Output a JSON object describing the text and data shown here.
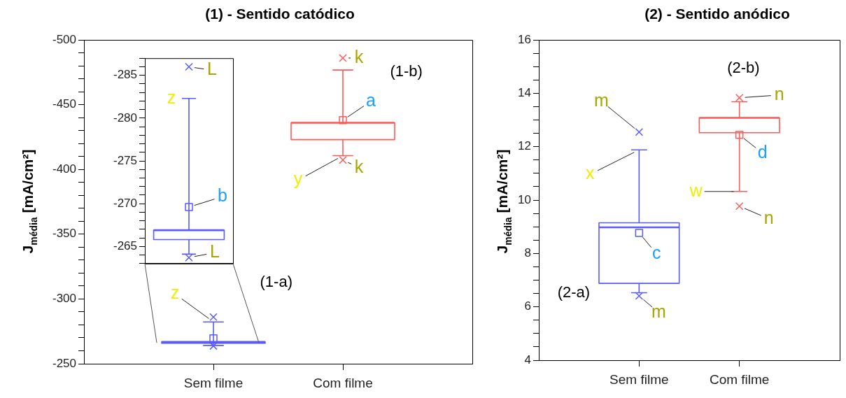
{
  "chart_data": [
    {
      "type": "box",
      "title": "(1) - Sentido catódico",
      "ylabel": "J$_{média}$ [mA/cm²]",
      "categories": [
        "Sem filme",
        "Com filme"
      ],
      "colors": [
        "#5a5aff",
        "#ff5a5a"
      ],
      "boxes": [
        {
          "low": -282.3,
          "q1": -266.9,
          "median": -266.9,
          "q3": -265.8,
          "high": -264.1,
          "mean": -269.6,
          "outliers": [
            -286,
            -263.7
          ]
        },
        {
          "low": -476.7,
          "q1": -436,
          "median": -436,
          "q3": -423,
          "high": -410.6,
          "mean": -438,
          "outliers": [
            -486,
            -407.3
          ]
        }
      ],
      "ylim": [
        -250,
        -500
      ],
      "yticks": [
        -500,
        {
          "value": -490,
          "label": null
        },
        {
          "value": -480,
          "label": null
        },
        {
          "value": -470,
          "label": null
        },
        {
          "value": -460,
          "label": null
        },
        -450,
        {
          "value": -440,
          "label": null
        },
        {
          "value": -430,
          "label": null
        },
        {
          "value": -420,
          "label": null
        },
        {
          "value": -410,
          "label": null
        },
        -400,
        {
          "value": -390,
          "label": null
        },
        {
          "value": -380,
          "label": null
        },
        {
          "value": -370,
          "label": null
        },
        {
          "value": -360,
          "label": null
        },
        -350,
        {
          "value": -340,
          "label": null
        },
        {
          "value": -330,
          "label": null
        },
        {
          "value": -320,
          "label": null
        },
        {
          "value": -310,
          "label": null
        },
        -300,
        {
          "value": -290,
          "label": null
        },
        {
          "value": -280,
          "label": null
        },
        {
          "value": -270,
          "label": null
        },
        {
          "value": -260,
          "label": null
        },
        -250
      ],
      "annotations": [
        "z",
        "k",
        "a",
        {
          "text": "y",
          "x": "Com filme",
          "y": -410.6
        },
        "k",
        "(1-b)",
        "(1-a)"
      ]
    },
    {
      "type": "box",
      "categories": [
        null
      ],
      "colors": [
        "#5a5aff"
      ],
      "boxes": [
        {
          "low": -282.3,
          "q1": -266.9,
          "median": -266.9,
          "q3": -265.8,
          "high": -264.1,
          "mean": -269.6,
          "outliers": [
            -286,
            -263.7
          ]
        }
      ],
      "ylim": [
        -263,
        -287
      ],
      "tick_labels": "y",
      "yticks": [
        {
          "value": -287,
          "label": null
        },
        {
          "value": -286,
          "label": null
        },
        -285,
        {
          "value": -284,
          "label": null
        },
        {
          "value": -283,
          "label": null
        },
        {
          "value": -282,
          "label": null
        },
        {
          "value": -281,
          "label": null
        },
        -280,
        {
          "value": -279,
          "label": null
        },
        {
          "value": -278,
          "label": null
        },
        {
          "value": -277,
          "label": null
        },
        {
          "value": -276,
          "label": null
        },
        -275,
        {
          "value": -274,
          "label": null
        },
        {
          "value": -273,
          "label": null
        },
        {
          "value": -272,
          "label": null
        },
        {
          "value": -271,
          "label": null
        },
        -270,
        {
          "value": -269,
          "label": null
        },
        {
          "value": -268,
          "label": null
        },
        {
          "value": -267,
          "label": null
        },
        {
          "value": -266,
          "label": null
        },
        -265,
        {
          "value": -264,
          "label": null
        },
        {
          "value": -263,
          "label": null
        }
      ],
      "annotations": [
        "L",
        "z",
        "b",
        "L"
      ]
    },
    {
      "type": "box",
      "title": "(2) - Sentido anódico",
      "ylabel": "J$_{média}$ [mA/cm²]",
      "categories": [
        "Sem filme",
        "Com filme"
      ],
      "colors": [
        "#5a5aff",
        "#ff5a5a"
      ],
      "boxes": [
        {
          "low": 6.53,
          "q1": 6.88,
          "median": 8.98,
          "q3": 9.15,
          "high": 11.88,
          "mean": 8.77,
          "outliers": [
            6.41,
            12.55
          ]
        },
        {
          "low": 10.32,
          "q1": 12.52,
          "median": 13.08,
          "q3": 13.08,
          "high": 13.68,
          "mean": 12.44,
          "outliers": [
            9.77,
            13.83
          ]
        }
      ],
      "ylim": [
        4,
        16
      ],
      "yticks": [
        4,
        {
          "value": 4.5,
          "label": null
        },
        {
          "value": 5,
          "label": null
        },
        {
          "value": 5.5,
          "label": null
        },
        6,
        {
          "value": 6.5,
          "label": null
        },
        {
          "value": 7,
          "label": null
        },
        {
          "value": 7.5,
          "label": null
        },
        8,
        {
          "value": 8.5,
          "label": null
        },
        {
          "value": 9,
          "label": null
        },
        {
          "value": 9.5,
          "label": null
        },
        10,
        {
          "value": 10.5,
          "label": null
        },
        {
          "value": 11,
          "label": null
        },
        {
          "value": 11.5,
          "label": null
        },
        12,
        {
          "value": 12.5,
          "label": null
        },
        {
          "value": 13,
          "label": null
        },
        {
          "value": 13.5,
          "label": null
        },
        14,
        {
          "value": 14.5,
          "label": null
        },
        {
          "value": 15,
          "label": null
        },
        {
          "value": 15.5,
          "label": null
        },
        16
      ],
      "annotations": [
        "m",
        {
          "text": "x",
          "x": "Sem filme",
          "y": 11.88
        },
        "c",
        "m",
        "n",
        "d",
        {
          "text": "w",
          "x": "Com filme",
          "y": 10.32
        },
        "n",
        "(2-b)",
        "(2-a)"
      ]
    }
  ]
}
